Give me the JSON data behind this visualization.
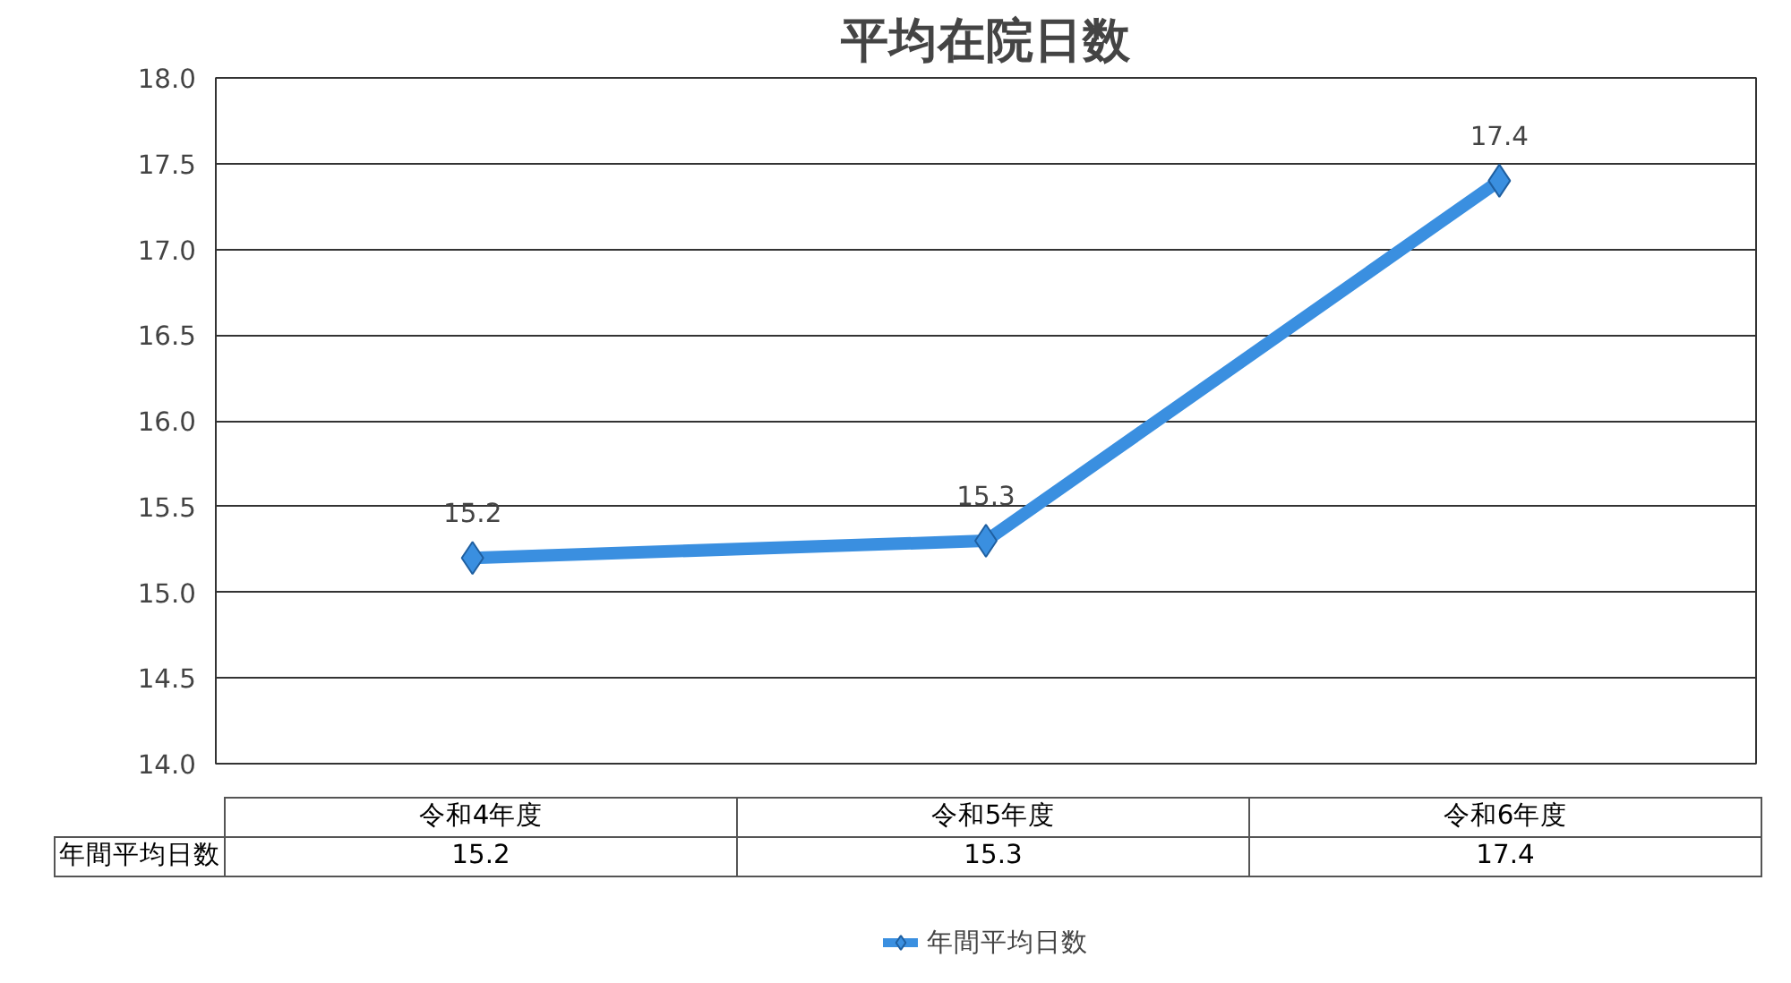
{
  "chart_data": {
    "type": "line",
    "title": "平均在院日数",
    "categories": [
      "令和4年度",
      "令和5年度",
      "令和6年度"
    ],
    "series": [
      {
        "name": "年間平均日数",
        "color": "#3a8fe0",
        "values": [
          15.2,
          15.3,
          17.4
        ],
        "value_labels": [
          "15.2",
          "15.3",
          "17.4"
        ]
      }
    ],
    "ylim": [
      14,
      18
    ],
    "yticks": [
      {
        "value": 14,
        "label": "14.0"
      },
      {
        "value": 14.5,
        "label": "14.5"
      },
      {
        "value": 15,
        "label": "15.0"
      },
      {
        "value": 15.5,
        "label": "15.5"
      },
      {
        "value": 16,
        "label": "16.0"
      },
      {
        "value": 16.5,
        "label": "16.5"
      },
      {
        "value": 17,
        "label": "17.0"
      },
      {
        "value": 17.5,
        "label": "17.5"
      },
      {
        "value": 18,
        "label": "18.0"
      }
    ],
    "annotations": [
      "15.2",
      "15.3",
      "17.4"
    ],
    "grid": "y",
    "legend": "bottom",
    "marker": "diamond",
    "line_style": "solid"
  }
}
